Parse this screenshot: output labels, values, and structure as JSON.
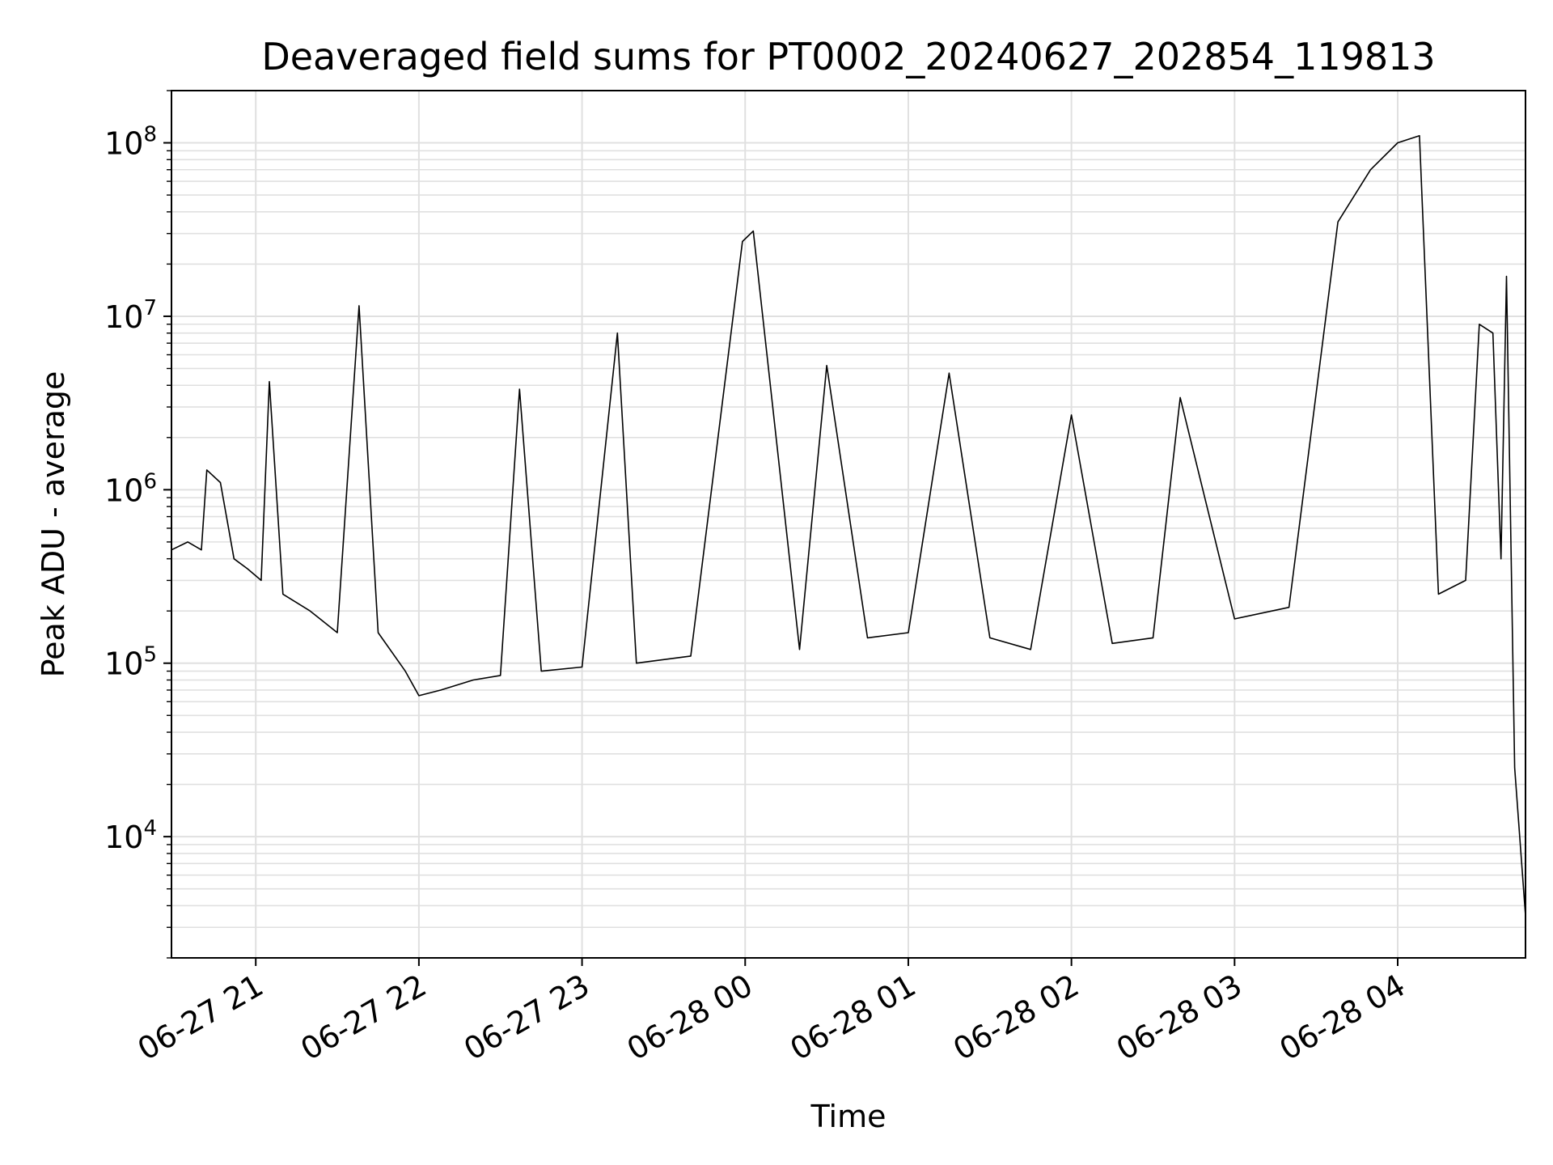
{
  "chart_data": {
    "type": "line",
    "title": "Deaveraged field sums for PT0002_20240627_202854_119813",
    "xlabel": "Time",
    "ylabel": "Peak ADU - average",
    "yscale": "log",
    "ylim": [
      2000,
      200000000
    ],
    "xlim": [
      "2024-06-27 20:29",
      "2024-06-28 04:47"
    ],
    "grid": true,
    "line_color": "#000000",
    "grid_color": "#e0e0e0",
    "x_ticks": [
      {
        "value": "2024-06-27 21:00",
        "label": "06-27 21"
      },
      {
        "value": "2024-06-27 22:00",
        "label": "06-27 22"
      },
      {
        "value": "2024-06-27 23:00",
        "label": "06-27 23"
      },
      {
        "value": "2024-06-28 00:00",
        "label": "06-28 00"
      },
      {
        "value": "2024-06-28 01:00",
        "label": "06-28 01"
      },
      {
        "value": "2024-06-28 02:00",
        "label": "06-28 02"
      },
      {
        "value": "2024-06-28 03:00",
        "label": "06-28 03"
      },
      {
        "value": "2024-06-28 04:00",
        "label": "06-28 04"
      }
    ],
    "y_ticks": [
      {
        "value": 10000,
        "base": "10",
        "exp": "4"
      },
      {
        "value": 100000,
        "base": "10",
        "exp": "5"
      },
      {
        "value": 1000000,
        "base": "10",
        "exp": "6"
      },
      {
        "value": 10000000,
        "base": "10",
        "exp": "7"
      },
      {
        "value": 100000000,
        "base": "10",
        "exp": "8"
      }
    ],
    "series": [
      {
        "x": [
          "2024-06-27 20:29",
          "2024-06-27 20:35",
          "2024-06-27 20:40",
          "2024-06-27 20:42",
          "2024-06-27 20:47",
          "2024-06-27 20:52",
          "2024-06-27 20:57",
          "2024-06-27 21:02",
          "2024-06-27 21:05",
          "2024-06-27 21:10",
          "2024-06-27 21:20",
          "2024-06-27 21:30",
          "2024-06-27 21:38",
          "2024-06-27 21:45",
          "2024-06-27 21:55",
          "2024-06-27 22:00",
          "2024-06-27 22:08",
          "2024-06-27 22:20",
          "2024-06-27 22:30",
          "2024-06-27 22:37",
          "2024-06-27 22:45",
          "2024-06-27 23:00",
          "2024-06-27 23:13",
          "2024-06-27 23:20",
          "2024-06-27 23:40",
          "2024-06-27 23:59",
          "2024-06-28 00:03",
          "2024-06-28 00:20",
          "2024-06-28 00:30",
          "2024-06-28 00:45",
          "2024-06-28 01:00",
          "2024-06-28 01:15",
          "2024-06-28 01:30",
          "2024-06-28 01:45",
          "2024-06-28 02:00",
          "2024-06-28 02:15",
          "2024-06-28 02:30",
          "2024-06-28 02:40",
          "2024-06-28 03:00",
          "2024-06-28 03:20",
          "2024-06-28 03:38",
          "2024-06-28 03:50",
          "2024-06-28 04:00",
          "2024-06-28 04:08",
          "2024-06-28 04:15",
          "2024-06-28 04:25",
          "2024-06-28 04:30",
          "2024-06-28 04:35",
          "2024-06-28 04:38",
          "2024-06-28 04:40",
          "2024-06-28 04:43",
          "2024-06-28 04:47"
        ],
        "y": [
          450000,
          500000,
          450000,
          1300000,
          1100000,
          400000,
          350000,
          300000,
          4200000,
          250000,
          200000,
          150000,
          11500000,
          150000,
          90000,
          65000,
          70000,
          80000,
          85000,
          3800000,
          90000,
          95000,
          8000000,
          100000,
          110000,
          27000000,
          31000000,
          120000,
          5200000,
          140000,
          150000,
          4700000,
          140000,
          120000,
          2700000,
          130000,
          140000,
          3400000,
          180000,
          210000,
          35000000,
          70000000,
          100000000,
          110000000,
          250000,
          300000,
          9000000,
          8000000,
          400000,
          17000000,
          25000,
          3500
        ]
      }
    ]
  }
}
